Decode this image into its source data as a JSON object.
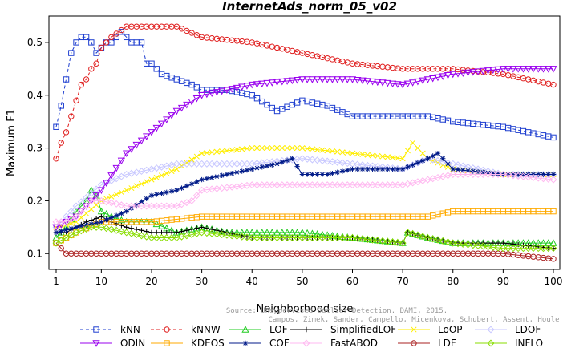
{
  "chart_data": {
    "type": "line",
    "title": "InternetAds_norm_05_v02",
    "xlabel": "Neighborhood size",
    "ylabel": "Maximum F1",
    "xlim": [
      1,
      100
    ],
    "ylim": [
      0.07,
      0.55
    ],
    "xticks": [
      1,
      10,
      20,
      30,
      40,
      50,
      60,
      70,
      80,
      90,
      100
    ],
    "yticks": [
      0.1,
      0.2,
      0.3,
      0.4,
      0.5
    ],
    "grid": false,
    "legend_position": "bottom",
    "watermark": [
      "Source: Unsupervised Outlier Detection. DAMI, 2015.",
      "Campos, Zimek, Sander, Campello, Micenkova, Schubert, Assent, Houle"
    ],
    "series": [
      {
        "name": "kNN",
        "color": "#1f3fd0",
        "marker": "square",
        "dash": "4,3",
        "points": [
          [
            1,
            0.34
          ],
          [
            2,
            0.38
          ],
          [
            3,
            0.43
          ],
          [
            4,
            0.48
          ],
          [
            5,
            0.5
          ],
          [
            6,
            0.51
          ],
          [
            7,
            0.51
          ],
          [
            8,
            0.5
          ],
          [
            9,
            0.48
          ],
          [
            10,
            0.49
          ],
          [
            11,
            0.5
          ],
          [
            12,
            0.5
          ],
          [
            13,
            0.51
          ],
          [
            14,
            0.52
          ],
          [
            15,
            0.51
          ],
          [
            16,
            0.5
          ],
          [
            17,
            0.5
          ],
          [
            18,
            0.5
          ],
          [
            19,
            0.46
          ],
          [
            20,
            0.46
          ],
          [
            22,
            0.44
          ],
          [
            25,
            0.43
          ],
          [
            28,
            0.42
          ],
          [
            30,
            0.41
          ],
          [
            35,
            0.41
          ],
          [
            40,
            0.4
          ],
          [
            45,
            0.37
          ],
          [
            50,
            0.39
          ],
          [
            55,
            0.38
          ],
          [
            60,
            0.36
          ],
          [
            70,
            0.36
          ],
          [
            75,
            0.36
          ],
          [
            80,
            0.35
          ],
          [
            90,
            0.34
          ],
          [
            100,
            0.32
          ]
        ]
      },
      {
        "name": "kNNW",
        "color": "#e02020",
        "marker": "circle",
        "dash": "4,3",
        "points": [
          [
            1,
            0.28
          ],
          [
            2,
            0.31
          ],
          [
            3,
            0.33
          ],
          [
            4,
            0.36
          ],
          [
            5,
            0.39
          ],
          [
            6,
            0.42
          ],
          [
            7,
            0.43
          ],
          [
            8,
            0.45
          ],
          [
            9,
            0.46
          ],
          [
            10,
            0.49
          ],
          [
            12,
            0.51
          ],
          [
            15,
            0.53
          ],
          [
            20,
            0.53
          ],
          [
            25,
            0.53
          ],
          [
            30,
            0.51
          ],
          [
            40,
            0.5
          ],
          [
            50,
            0.48
          ],
          [
            60,
            0.46
          ],
          [
            70,
            0.45
          ],
          [
            80,
            0.45
          ],
          [
            90,
            0.44
          ],
          [
            100,
            0.42
          ]
        ]
      },
      {
        "name": "LOF",
        "color": "#22cc22",
        "marker": "triangle-up",
        "dash": "",
        "points": [
          [
            1,
            0.13
          ],
          [
            3,
            0.15
          ],
          [
            5,
            0.18
          ],
          [
            7,
            0.2
          ],
          [
            8,
            0.22
          ],
          [
            9,
            0.21
          ],
          [
            10,
            0.18
          ],
          [
            12,
            0.17
          ],
          [
            15,
            0.16
          ],
          [
            20,
            0.16
          ],
          [
            25,
            0.14
          ],
          [
            30,
            0.15
          ],
          [
            35,
            0.14
          ],
          [
            40,
            0.14
          ],
          [
            50,
            0.14
          ],
          [
            60,
            0.13
          ],
          [
            70,
            0.12
          ],
          [
            71,
            0.14
          ],
          [
            75,
            0.13
          ],
          [
            80,
            0.12
          ],
          [
            90,
            0.12
          ],
          [
            100,
            0.12
          ]
        ]
      },
      {
        "name": "SimplifiedLOF",
        "color": "#000000",
        "marker": "plus",
        "dash": "",
        "points": [
          [
            1,
            0.14
          ],
          [
            3,
            0.14
          ],
          [
            5,
            0.15
          ],
          [
            7,
            0.16
          ],
          [
            10,
            0.17
          ],
          [
            12,
            0.16
          ],
          [
            15,
            0.15
          ],
          [
            20,
            0.14
          ],
          [
            25,
            0.14
          ],
          [
            30,
            0.15
          ],
          [
            35,
            0.14
          ],
          [
            40,
            0.13
          ],
          [
            50,
            0.13
          ],
          [
            60,
            0.13
          ],
          [
            70,
            0.12
          ],
          [
            71,
            0.14
          ],
          [
            75,
            0.13
          ],
          [
            80,
            0.12
          ],
          [
            90,
            0.12
          ],
          [
            100,
            0.11
          ]
        ]
      },
      {
        "name": "LoOP",
        "color": "#ffee00",
        "marker": "x",
        "dash": "",
        "points": [
          [
            1,
            0.15
          ],
          [
            5,
            0.16
          ],
          [
            10,
            0.2
          ],
          [
            15,
            0.22
          ],
          [
            20,
            0.24
          ],
          [
            25,
            0.26
          ],
          [
            30,
            0.29
          ],
          [
            40,
            0.3
          ],
          [
            50,
            0.3
          ],
          [
            60,
            0.29
          ],
          [
            70,
            0.28
          ],
          [
            72,
            0.31
          ],
          [
            75,
            0.28
          ],
          [
            80,
            0.26
          ],
          [
            90,
            0.25
          ],
          [
            100,
            0.25
          ]
        ]
      },
      {
        "name": "LDOF",
        "color": "#c8c8ff",
        "marker": "diamond",
        "dash": "",
        "points": [
          [
            1,
            0.15
          ],
          [
            5,
            0.19
          ],
          [
            10,
            0.23
          ],
          [
            15,
            0.25
          ],
          [
            20,
            0.26
          ],
          [
            25,
            0.27
          ],
          [
            30,
            0.27
          ],
          [
            40,
            0.27
          ],
          [
            50,
            0.28
          ],
          [
            60,
            0.27
          ],
          [
            70,
            0.26
          ],
          [
            75,
            0.28
          ],
          [
            80,
            0.27
          ],
          [
            90,
            0.25
          ],
          [
            100,
            0.25
          ]
        ]
      },
      {
        "name": "ODIN",
        "color": "#9900ee",
        "marker": "triangle-down",
        "dash": "",
        "points": [
          [
            1,
            0.15
          ],
          [
            5,
            0.17
          ],
          [
            10,
            0.22
          ],
          [
            15,
            0.29
          ],
          [
            20,
            0.33
          ],
          [
            25,
            0.37
          ],
          [
            30,
            0.4
          ],
          [
            40,
            0.42
          ],
          [
            50,
            0.43
          ],
          [
            60,
            0.43
          ],
          [
            70,
            0.42
          ],
          [
            80,
            0.44
          ],
          [
            90,
            0.45
          ],
          [
            100,
            0.45
          ]
        ]
      },
      {
        "name": "KDEOS",
        "color": "#ffaa00",
        "marker": "square",
        "dash": "",
        "points": [
          [
            1,
            0.12
          ],
          [
            5,
            0.14
          ],
          [
            10,
            0.16
          ],
          [
            15,
            0.16
          ],
          [
            20,
            0.16
          ],
          [
            30,
            0.17
          ],
          [
            40,
            0.17
          ],
          [
            50,
            0.17
          ],
          [
            60,
            0.17
          ],
          [
            70,
            0.17
          ],
          [
            75,
            0.17
          ],
          [
            80,
            0.18
          ],
          [
            90,
            0.18
          ],
          [
            100,
            0.18
          ]
        ]
      },
      {
        "name": "COF",
        "color": "#001a88",
        "marker": "star",
        "dash": "",
        "points": [
          [
            1,
            0.14
          ],
          [
            5,
            0.15
          ],
          [
            10,
            0.16
          ],
          [
            15,
            0.18
          ],
          [
            20,
            0.21
          ],
          [
            25,
            0.22
          ],
          [
            30,
            0.24
          ],
          [
            35,
            0.25
          ],
          [
            40,
            0.26
          ],
          [
            45,
            0.27
          ],
          [
            48,
            0.28
          ],
          [
            50,
            0.25
          ],
          [
            55,
            0.25
          ],
          [
            60,
            0.26
          ],
          [
            65,
            0.26
          ],
          [
            70,
            0.26
          ],
          [
            75,
            0.28
          ],
          [
            77,
            0.29
          ],
          [
            80,
            0.26
          ],
          [
            90,
            0.25
          ],
          [
            100,
            0.25
          ]
        ]
      },
      {
        "name": "FastABOD",
        "color": "#ffb8f0",
        "marker": "diamond",
        "dash": "",
        "points": [
          [
            1,
            0.16
          ],
          [
            3,
            0.16
          ],
          [
            5,
            0.17
          ],
          [
            8,
            0.2
          ],
          [
            10,
            0.2
          ],
          [
            15,
            0.19
          ],
          [
            20,
            0.19
          ],
          [
            25,
            0.19
          ],
          [
            28,
            0.2
          ],
          [
            30,
            0.22
          ],
          [
            40,
            0.23
          ],
          [
            50,
            0.23
          ],
          [
            60,
            0.23
          ],
          [
            70,
            0.23
          ],
          [
            75,
            0.24
          ],
          [
            80,
            0.25
          ],
          [
            90,
            0.25
          ],
          [
            100,
            0.24
          ]
        ]
      },
      {
        "name": "LDF",
        "color": "#aa2020",
        "marker": "circle",
        "dash": "",
        "points": [
          [
            1,
            0.12
          ],
          [
            3,
            0.1
          ],
          [
            5,
            0.1
          ],
          [
            10,
            0.1
          ],
          [
            15,
            0.1
          ],
          [
            20,
            0.1
          ],
          [
            30,
            0.1
          ],
          [
            40,
            0.1
          ],
          [
            50,
            0.1
          ],
          [
            60,
            0.1
          ],
          [
            70,
            0.1
          ],
          [
            80,
            0.1
          ],
          [
            90,
            0.1
          ],
          [
            100,
            0.09
          ]
        ]
      },
      {
        "name": "INFLO",
        "color": "#88dd00",
        "marker": "diamond",
        "dash": "",
        "points": [
          [
            1,
            0.12
          ],
          [
            3,
            0.13
          ],
          [
            5,
            0.14
          ],
          [
            8,
            0.15
          ],
          [
            10,
            0.15
          ],
          [
            15,
            0.14
          ],
          [
            20,
            0.13
          ],
          [
            25,
            0.13
          ],
          [
            30,
            0.14
          ],
          [
            40,
            0.13
          ],
          [
            50,
            0.13
          ],
          [
            60,
            0.13
          ],
          [
            70,
            0.12
          ],
          [
            71,
            0.14
          ],
          [
            75,
            0.13
          ],
          [
            80,
            0.12
          ],
          [
            90,
            0.11
          ],
          [
            100,
            0.11
          ]
        ]
      }
    ]
  }
}
